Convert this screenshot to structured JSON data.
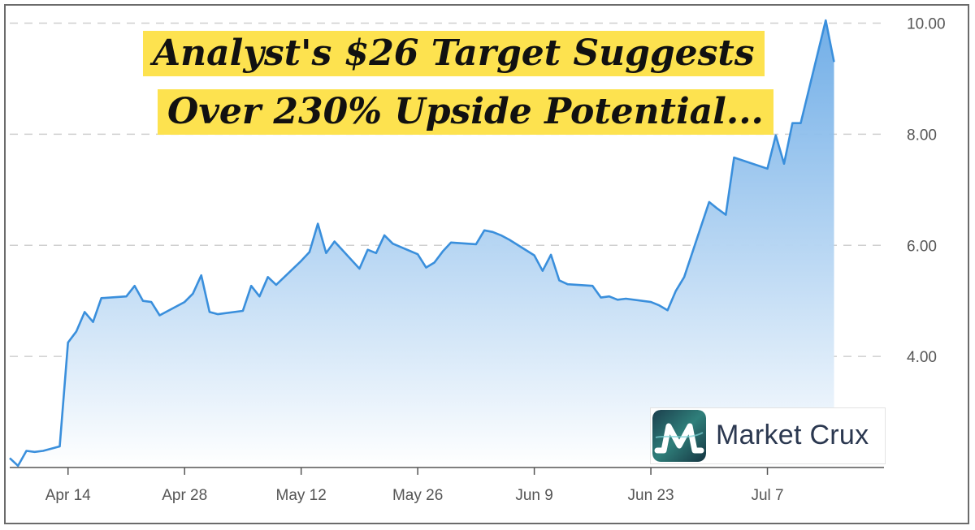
{
  "headline": {
    "line1": "Analyst's $26 Target Suggests",
    "line2": "Over 230% Upside Potential..."
  },
  "brand": {
    "name": "Market Crux",
    "icon": "market-crux-logo-icon"
  },
  "colors": {
    "line": "#3a8fdc",
    "area_top": "#6aaae6",
    "area_bottom": "#ffffff",
    "highlight": "#fde24f",
    "grid": "#cfcfcf"
  },
  "chart_data": {
    "type": "area",
    "title": "",
    "xlabel": "",
    "ylabel": "",
    "x_ticks": [
      "Apr 14",
      "Apr 28",
      "May 12",
      "May 26",
      "Jun 9",
      "Jun 23",
      "Jul 7"
    ],
    "y_ticks": [
      "4.00",
      "6.00",
      "8.00",
      "10.00"
    ],
    "y_tick_values": [
      4,
      6,
      8,
      10
    ],
    "ylim": [
      2.0,
      10.3
    ],
    "xlim": [
      "Apr 7",
      "Jul 21"
    ],
    "y_axis_side": "right",
    "grid": "horizontal dashed",
    "series": [
      {
        "values": [
          {
            "x": "Apr 7",
            "y": 2.17
          },
          {
            "x": "Apr 8",
            "y": 2.03
          },
          {
            "x": "Apr 9",
            "y": 2.3
          },
          {
            "x": "Apr 10",
            "y": 2.28
          },
          {
            "x": "Apr 11",
            "y": 2.3
          },
          {
            "x": "Apr 13",
            "y": 2.38
          },
          {
            "x": "Apr 14",
            "y": 4.25
          },
          {
            "x": "Apr 15",
            "y": 4.45
          },
          {
            "x": "Apr 16",
            "y": 4.8
          },
          {
            "x": "Apr 17",
            "y": 4.62
          },
          {
            "x": "Apr 18",
            "y": 5.05
          },
          {
            "x": "Apr 21",
            "y": 5.08
          },
          {
            "x": "Apr 22",
            "y": 5.27
          },
          {
            "x": "Apr 23",
            "y": 5.0
          },
          {
            "x": "Apr 24",
            "y": 4.98
          },
          {
            "x": "Apr 25",
            "y": 4.74
          },
          {
            "x": "Apr 28",
            "y": 4.98
          },
          {
            "x": "Apr 29",
            "y": 5.13
          },
          {
            "x": "Apr 30",
            "y": 5.46
          },
          {
            "x": "May 1",
            "y": 4.8
          },
          {
            "x": "May 2",
            "y": 4.76
          },
          {
            "x": "May 5",
            "y": 4.82
          },
          {
            "x": "May 6",
            "y": 5.27
          },
          {
            "x": "May 7",
            "y": 5.08
          },
          {
            "x": "May 8",
            "y": 5.43
          },
          {
            "x": "May 9",
            "y": 5.29
          },
          {
            "x": "May 12",
            "y": 5.72
          },
          {
            "x": "May 13",
            "y": 5.88
          },
          {
            "x": "May 14",
            "y": 6.39
          },
          {
            "x": "May 15",
            "y": 5.86
          },
          {
            "x": "May 16",
            "y": 6.07
          },
          {
            "x": "May 19",
            "y": 5.58
          },
          {
            "x": "May 20",
            "y": 5.92
          },
          {
            "x": "May 21",
            "y": 5.86
          },
          {
            "x": "May 22",
            "y": 6.18
          },
          {
            "x": "May 23",
            "y": 6.03
          },
          {
            "x": "May 26",
            "y": 5.84
          },
          {
            "x": "May 27",
            "y": 5.6
          },
          {
            "x": "May 28",
            "y": 5.69
          },
          {
            "x": "May 29",
            "y": 5.89
          },
          {
            "x": "May 30",
            "y": 6.05
          },
          {
            "x": "Jun 2",
            "y": 6.02
          },
          {
            "x": "Jun 3",
            "y": 6.27
          },
          {
            "x": "Jun 4",
            "y": 6.24
          },
          {
            "x": "Jun 5",
            "y": 6.18
          },
          {
            "x": "Jun 6",
            "y": 6.1
          },
          {
            "x": "Jun 9",
            "y": 5.82
          },
          {
            "x": "Jun 10",
            "y": 5.54
          },
          {
            "x": "Jun 11",
            "y": 5.83
          },
          {
            "x": "Jun 12",
            "y": 5.37
          },
          {
            "x": "Jun 13",
            "y": 5.3
          },
          {
            "x": "Jun 16",
            "y": 5.27
          },
          {
            "x": "Jun 17",
            "y": 5.06
          },
          {
            "x": "Jun 18",
            "y": 5.08
          },
          {
            "x": "Jun 19",
            "y": 5.02
          },
          {
            "x": "Jun 20",
            "y": 5.04
          },
          {
            "x": "Jun 23",
            "y": 4.98
          },
          {
            "x": "Jun 24",
            "y": 4.92
          },
          {
            "x": "Jun 25",
            "y": 4.83
          },
          {
            "x": "Jun 26",
            "y": 5.18
          },
          {
            "x": "Jun 27",
            "y": 5.43
          },
          {
            "x": "Jun 30",
            "y": 6.78
          },
          {
            "x": "Jul 1",
            "y": 6.66
          },
          {
            "x": "Jul 2",
            "y": 6.55
          },
          {
            "x": "Jul 3",
            "y": 7.58
          },
          {
            "x": "Jul 7",
            "y": 7.38
          },
          {
            "x": "Jul 8",
            "y": 7.98
          },
          {
            "x": "Jul 9",
            "y": 7.47
          },
          {
            "x": "Jul 10",
            "y": 8.2
          },
          {
            "x": "Jul 11",
            "y": 8.2
          },
          {
            "x": "Jul 14",
            "y": 10.05
          },
          {
            "x": "Jul 15",
            "y": 9.3
          }
        ]
      }
    ]
  }
}
